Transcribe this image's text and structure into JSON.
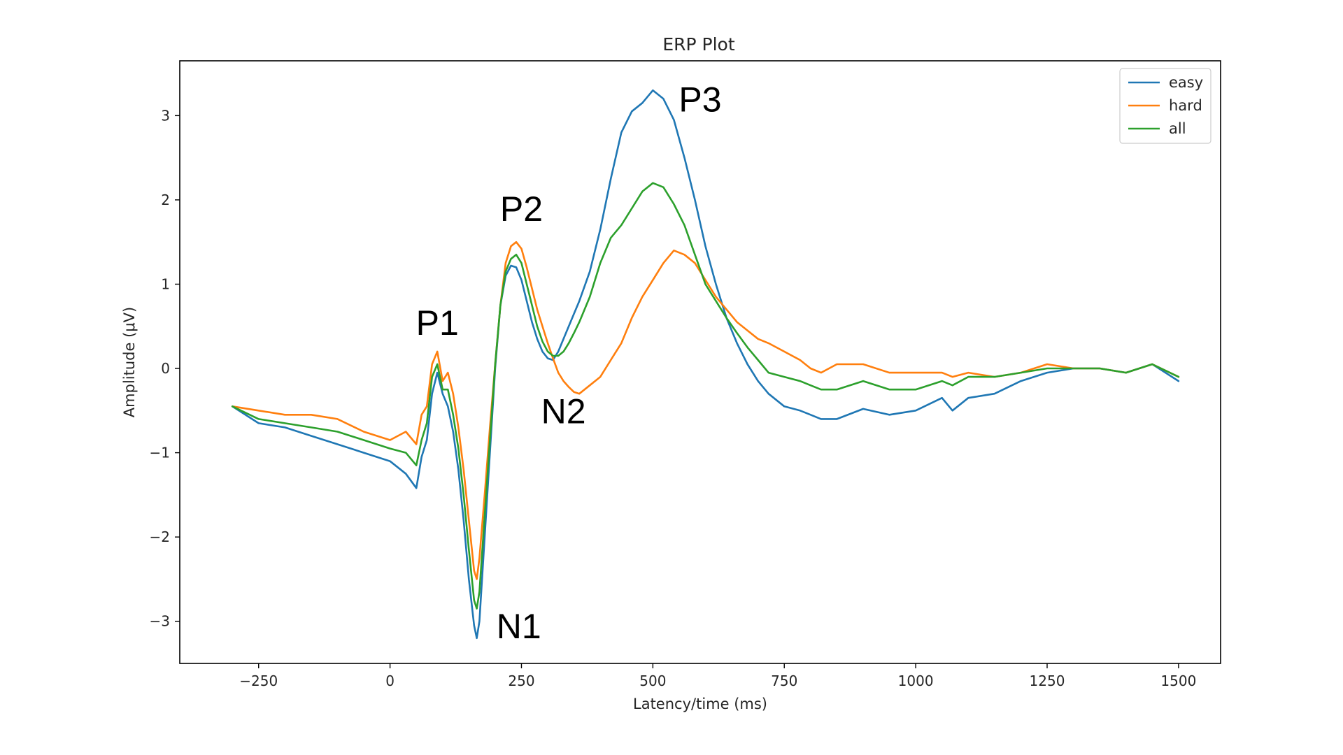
{
  "chart_data": {
    "type": "line",
    "title": "ERP Plot",
    "xlabel": "Latency/time (ms)",
    "ylabel": "Amplitude (μV)",
    "xlim": [
      -400,
      1580
    ],
    "ylim": [
      -3.5,
      3.65
    ],
    "xticks": [
      -250,
      0,
      250,
      500,
      750,
      1000,
      1250,
      1500
    ],
    "xtick_labels": [
      "−250",
      "0",
      "250",
      "500",
      "750",
      "1000",
      "1250",
      "1500"
    ],
    "yticks": [
      -3,
      -2,
      -1,
      0,
      1,
      2,
      3
    ],
    "ytick_labels": [
      "−3",
      "−2",
      "−1",
      "0",
      "1",
      "2",
      "3"
    ],
    "grid": false,
    "legend_position": "top-right",
    "series": [
      {
        "name": "easy",
        "color": "#1f77b4",
        "x": [
          -300,
          -250,
          -200,
          -150,
          -100,
          -50,
          0,
          30,
          50,
          60,
          70,
          80,
          90,
          100,
          110,
          120,
          130,
          140,
          150,
          160,
          165,
          170,
          180,
          190,
          200,
          210,
          220,
          230,
          240,
          250,
          260,
          270,
          280,
          290,
          300,
          310,
          320,
          330,
          340,
          350,
          360,
          380,
          400,
          420,
          440,
          460,
          480,
          500,
          520,
          540,
          560,
          580,
          600,
          620,
          640,
          660,
          680,
          700,
          720,
          750,
          780,
          800,
          820,
          850,
          900,
          950,
          1000,
          1050,
          1070,
          1100,
          1150,
          1200,
          1250,
          1300,
          1350,
          1400,
          1450,
          1500
        ],
        "y": [
          -0.45,
          -0.65,
          -0.7,
          -0.8,
          -0.9,
          -1.0,
          -1.1,
          -1.25,
          -1.42,
          -1.05,
          -0.85,
          -0.3,
          -0.05,
          -0.3,
          -0.45,
          -0.75,
          -1.2,
          -1.8,
          -2.5,
          -3.05,
          -3.2,
          -3.0,
          -2.0,
          -1.0,
          0.0,
          0.75,
          1.1,
          1.22,
          1.2,
          1.05,
          0.8,
          0.55,
          0.35,
          0.2,
          0.12,
          0.1,
          0.2,
          0.35,
          0.5,
          0.65,
          0.8,
          1.15,
          1.65,
          2.25,
          2.8,
          3.05,
          3.15,
          3.3,
          3.2,
          2.95,
          2.5,
          2.0,
          1.45,
          1.0,
          0.6,
          0.3,
          0.05,
          -0.15,
          -0.3,
          -0.45,
          -0.5,
          -0.55,
          -0.6,
          -0.6,
          -0.48,
          -0.55,
          -0.5,
          -0.35,
          -0.5,
          -0.35,
          -0.3,
          -0.15,
          -0.05,
          0.0,
          0.0,
          -0.05,
          0.05,
          -0.15
        ]
      },
      {
        "name": "hard",
        "color": "#ff7f0e",
        "x": [
          -300,
          -250,
          -200,
          -150,
          -100,
          -50,
          0,
          30,
          50,
          60,
          70,
          80,
          90,
          100,
          110,
          120,
          130,
          140,
          150,
          160,
          165,
          170,
          180,
          190,
          200,
          210,
          220,
          230,
          240,
          250,
          260,
          270,
          280,
          290,
          300,
          310,
          320,
          330,
          340,
          350,
          360,
          380,
          400,
          420,
          440,
          460,
          480,
          500,
          520,
          540,
          560,
          580,
          600,
          620,
          640,
          660,
          680,
          700,
          720,
          750,
          780,
          800,
          820,
          850,
          900,
          950,
          1000,
          1050,
          1070,
          1100,
          1150,
          1200,
          1250,
          1300,
          1350,
          1400,
          1450,
          1500
        ],
        "y": [
          -0.45,
          -0.5,
          -0.55,
          -0.55,
          -0.6,
          -0.75,
          -0.85,
          -0.75,
          -0.9,
          -0.55,
          -0.45,
          0.05,
          0.2,
          -0.15,
          -0.05,
          -0.3,
          -0.7,
          -1.2,
          -1.8,
          -2.4,
          -2.5,
          -2.25,
          -1.5,
          -0.7,
          0.05,
          0.75,
          1.25,
          1.45,
          1.5,
          1.42,
          1.2,
          0.95,
          0.7,
          0.5,
          0.3,
          0.12,
          -0.05,
          -0.15,
          -0.22,
          -0.28,
          -0.3,
          -0.2,
          -0.1,
          0.1,
          0.3,
          0.6,
          0.85,
          1.05,
          1.25,
          1.4,
          1.35,
          1.25,
          1.05,
          0.85,
          0.7,
          0.55,
          0.45,
          0.35,
          0.3,
          0.2,
          0.1,
          0.0,
          -0.05,
          0.05,
          0.05,
          -0.05,
          -0.05,
          -0.05,
          -0.1,
          -0.05,
          -0.1,
          -0.05,
          0.05,
          0.0,
          0.0,
          -0.05,
          0.05,
          -0.1
        ]
      },
      {
        "name": "all",
        "color": "#2ca02c",
        "x": [
          -300,
          -250,
          -200,
          -150,
          -100,
          -50,
          0,
          30,
          50,
          60,
          70,
          80,
          90,
          100,
          110,
          120,
          130,
          140,
          150,
          160,
          165,
          170,
          180,
          190,
          200,
          210,
          220,
          230,
          240,
          250,
          260,
          270,
          280,
          290,
          300,
          310,
          320,
          330,
          340,
          350,
          360,
          380,
          400,
          420,
          440,
          460,
          480,
          500,
          520,
          540,
          560,
          580,
          600,
          620,
          640,
          660,
          680,
          700,
          720,
          750,
          780,
          800,
          820,
          850,
          900,
          950,
          1000,
          1050,
          1070,
          1100,
          1150,
          1200,
          1250,
          1300,
          1350,
          1400,
          1450,
          1500
        ],
        "y": [
          -0.45,
          -0.6,
          -0.65,
          -0.7,
          -0.75,
          -0.85,
          -0.95,
          -1.0,
          -1.15,
          -0.85,
          -0.65,
          -0.1,
          0.05,
          -0.25,
          -0.25,
          -0.55,
          -0.95,
          -1.5,
          -2.15,
          -2.75,
          -2.85,
          -2.65,
          -1.75,
          -0.85,
          0.05,
          0.75,
          1.15,
          1.3,
          1.35,
          1.25,
          1.0,
          0.75,
          0.5,
          0.32,
          0.2,
          0.15,
          0.15,
          0.2,
          0.3,
          0.42,
          0.55,
          0.85,
          1.25,
          1.55,
          1.7,
          1.9,
          2.1,
          2.2,
          2.15,
          1.95,
          1.7,
          1.35,
          1.0,
          0.8,
          0.6,
          0.42,
          0.25,
          0.1,
          -0.05,
          -0.1,
          -0.15,
          -0.2,
          -0.25,
          -0.25,
          -0.15,
          -0.25,
          -0.25,
          -0.15,
          -0.2,
          -0.1,
          -0.1,
          -0.05,
          0.0,
          0.0,
          0.0,
          -0.05,
          0.05,
          -0.1
        ]
      }
    ],
    "annotations": [
      {
        "text": "P1",
        "x": 90,
        "y": 0.4
      },
      {
        "text": "P2",
        "x": 250,
        "y": 1.75
      },
      {
        "text": "P3",
        "x": 590,
        "y": 3.05
      },
      {
        "text": "N2",
        "x": 330,
        "y": -0.65
      },
      {
        "text": "N1",
        "x": 245,
        "y": -3.2
      }
    ]
  }
}
